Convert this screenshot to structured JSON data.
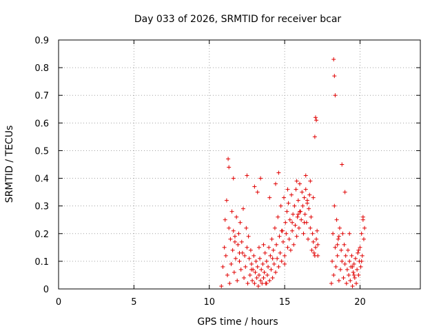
{
  "chart_data": {
    "type": "scatter",
    "title": "Day 033 of 2026, SRMTID for receiver bcar",
    "xlabel": "GPS time / hours",
    "ylabel": "SRMTID / TECUs",
    "xlim": [
      0,
      24
    ],
    "ylim": [
      0,
      0.9
    ],
    "xticks": [
      0,
      5,
      10,
      15,
      20
    ],
    "xtick_labels": [
      "0",
      "5",
      "10",
      "15",
      "20"
    ],
    "yticks": [
      0,
      0.1,
      0.2,
      0.3,
      0.4,
      0.5,
      0.6,
      0.7,
      0.8,
      0.9
    ],
    "ytick_labels": [
      "0",
      "0.1",
      "0.2",
      "0.3",
      "0.4",
      "0.5",
      "0.6",
      "0.7",
      "0.8",
      "0.9"
    ],
    "grid": true,
    "marker": "+",
    "series": [
      {
        "name": "SRMTID",
        "color": "#e00000",
        "x": [
          10.8,
          10.9,
          11.0,
          11.05,
          11.1,
          11.15,
          11.2,
          11.3,
          11.35,
          11.4,
          11.45,
          11.5,
          11.55,
          11.6,
          11.65,
          11.7,
          11.75,
          11.8,
          11.85,
          11.9,
          11.95,
          12.0,
          12.05,
          12.1,
          12.15,
          12.2,
          12.25,
          12.3,
          12.35,
          12.4,
          12.45,
          12.5,
          12.55,
          12.6,
          12.65,
          12.7,
          12.75,
          12.8,
          12.85,
          12.9,
          12.95,
          13.0,
          13.05,
          13.1,
          13.15,
          13.2,
          13.25,
          13.3,
          13.35,
          13.4,
          13.45,
          13.5,
          13.55,
          13.6,
          13.65,
          13.7,
          13.75,
          13.8,
          13.85,
          13.9,
          13.95,
          14.0,
          14.05,
          14.1,
          14.15,
          14.2,
          14.25,
          14.3,
          14.35,
          14.4,
          14.45,
          14.5,
          14.55,
          14.6,
          14.65,
          14.7,
          14.75,
          14.8,
          14.85,
          14.9,
          14.95,
          15.0,
          15.05,
          15.1,
          15.15,
          15.2,
          15.25,
          15.3,
          15.35,
          15.4,
          15.45,
          15.5,
          15.55,
          15.6,
          15.65,
          15.7,
          15.75,
          15.8,
          15.85,
          15.9,
          15.95,
          16.0,
          16.05,
          16.1,
          16.15,
          16.2,
          16.25,
          16.3,
          16.35,
          16.4,
          16.45,
          16.5,
          16.55,
          16.6,
          16.65,
          16.7,
          16.75,
          16.8,
          16.85,
          16.9,
          16.95,
          17.0,
          17.05,
          17.1,
          17.15,
          17.2,
          18.1,
          18.15,
          18.2,
          18.25,
          18.3,
          18.35,
          18.4,
          18.45,
          18.5,
          18.55,
          18.6,
          18.65,
          18.7,
          18.75,
          18.8,
          18.85,
          18.9,
          18.95,
          19.0,
          19.05,
          19.1,
          19.15,
          19.2,
          19.25,
          19.3,
          19.35,
          19.4,
          19.45,
          19.5,
          19.55,
          19.6,
          19.65,
          19.7,
          19.75,
          19.8,
          19.85,
          19.9,
          19.95,
          20.0,
          20.05,
          20.1,
          20.15,
          20.2,
          20.25,
          20.3,
          11.25,
          11.3,
          11.6,
          12.5,
          13.0,
          13.2,
          13.4,
          14.0,
          14.4,
          14.6,
          15.2,
          15.8,
          16.4,
          16.7,
          17.0,
          17.05,
          17.1,
          18.25,
          18.3,
          18.35,
          18.8,
          19.0,
          13.6,
          13.8,
          14.2,
          15.0,
          15.5,
          16.0,
          16.5,
          17.2,
          18.5,
          19.3,
          19.6,
          19.9,
          20.2,
          11.7,
          12.0,
          12.8,
          13.3,
          14.8,
          15.9,
          16.3,
          16.9,
          18.6,
          19.5,
          20.1
        ],
        "y": [
          0.01,
          0.08,
          0.15,
          0.25,
          0.12,
          0.32,
          0.05,
          0.22,
          0.02,
          0.18,
          0.09,
          0.28,
          0.14,
          0.21,
          0.06,
          0.19,
          0.11,
          0.26,
          0.03,
          0.16,
          0.2,
          0.1,
          0.24,
          0.07,
          0.17,
          0.13,
          0.29,
          0.04,
          0.12,
          0.08,
          0.22,
          0.15,
          0.02,
          0.19,
          0.11,
          0.05,
          0.14,
          0.09,
          0.03,
          0.07,
          0.12,
          0.02,
          0.06,
          0.1,
          0.04,
          0.08,
          0.01,
          0.05,
          0.11,
          0.03,
          0.07,
          0.02,
          0.09,
          0.04,
          0.06,
          0.13,
          0.02,
          0.1,
          0.05,
          0.08,
          0.15,
          0.03,
          0.12,
          0.07,
          0.18,
          0.04,
          0.14,
          0.09,
          0.22,
          0.06,
          0.16,
          0.11,
          0.26,
          0.08,
          0.19,
          0.13,
          0.3,
          0.1,
          0.21,
          0.17,
          0.33,
          0.12,
          0.24,
          0.2,
          0.28,
          0.15,
          0.31,
          0.18,
          0.25,
          0.14,
          0.34,
          0.21,
          0.27,
          0.16,
          0.3,
          0.23,
          0.36,
          0.19,
          0.26,
          0.32,
          0.22,
          0.38,
          0.28,
          0.25,
          0.35,
          0.3,
          0.2,
          0.33,
          0.27,
          0.36,
          0.24,
          0.31,
          0.18,
          0.29,
          0.34,
          0.22,
          0.26,
          0.14,
          0.2,
          0.17,
          0.13,
          0.12,
          0.15,
          0.18,
          0.21,
          0.16,
          0.02,
          0.1,
          0.2,
          0.05,
          0.3,
          0.15,
          0.08,
          0.25,
          0.12,
          0.18,
          0.03,
          0.22,
          0.07,
          0.14,
          0.1,
          0.2,
          0.04,
          0.16,
          0.09,
          0.12,
          0.02,
          0.07,
          0.14,
          0.05,
          0.1,
          0.03,
          0.08,
          0.12,
          0.01,
          0.06,
          0.09,
          0.04,
          0.11,
          0.02,
          0.07,
          0.13,
          0.05,
          0.1,
          0.15,
          0.08,
          0.2,
          0.12,
          0.25,
          0.18,
          0.22,
          0.47,
          0.44,
          0.4,
          0.41,
          0.37,
          0.35,
          0.4,
          0.33,
          0.38,
          0.42,
          0.36,
          0.39,
          0.41,
          0.39,
          0.55,
          0.62,
          0.61,
          0.83,
          0.77,
          0.7,
          0.45,
          0.35,
          0.16,
          0.02,
          0.11,
          0.09,
          0.24,
          0.28,
          0.32,
          0.12,
          0.16,
          0.2,
          0.05,
          0.14,
          0.26,
          0.17,
          0.13,
          0.07,
          0.15,
          0.21,
          0.27,
          0.24,
          0.33,
          0.19,
          0.08,
          0.1
        ]
      }
    ]
  }
}
